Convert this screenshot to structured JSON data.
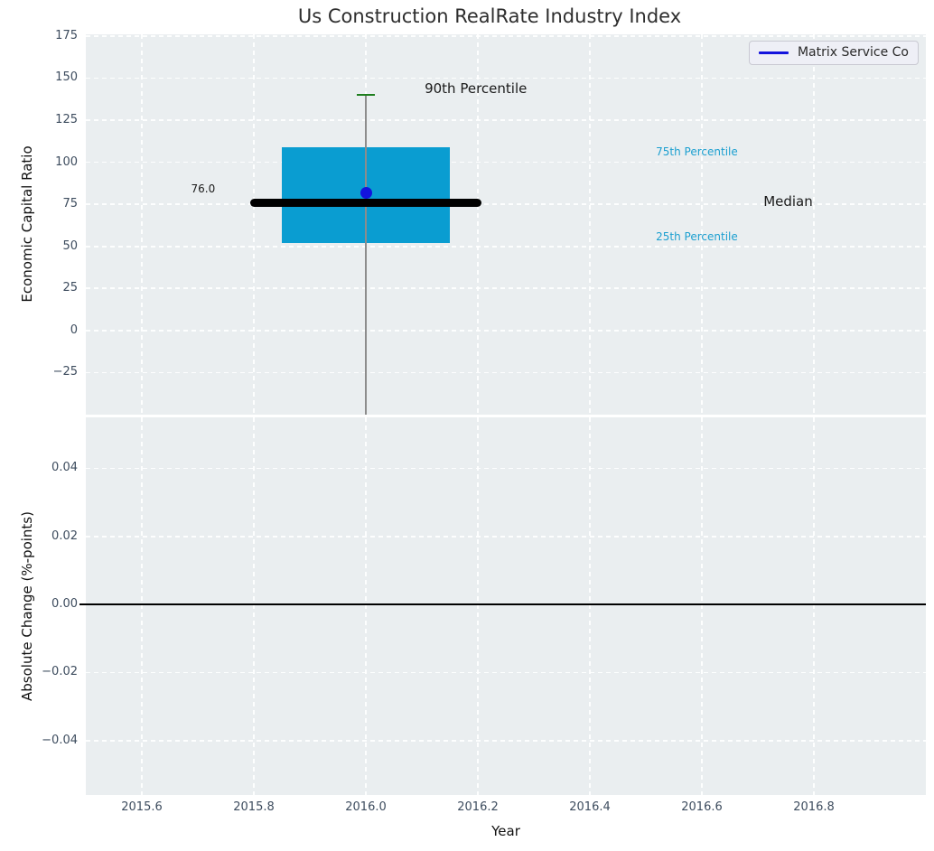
{
  "chart_data": {
    "type": "boxplot",
    "title": "Us Construction RealRate Industry Index",
    "xlabel": "Year",
    "legend": {
      "label": "Matrix Service Co",
      "line_color": "#1313dd",
      "position": "top-right"
    },
    "style": {
      "panel_bg": "#eaeef0",
      "grid_color": "#ffffff",
      "tick_color": "#3d4c5e",
      "title_color": "#2e2e2e",
      "box_fill": "#0a9dd1",
      "median_color": "#000000",
      "whisker_color": "#8c8c8c",
      "cap_color": "#1e7e1e",
      "point_color": "#1313dd",
      "zero_line_color": "#000000",
      "percentile_label_color": "#1b9fd0",
      "annotation_color": "#1a1a1a"
    },
    "x": {
      "lim": [
        2015.5,
        2017.0
      ],
      "ticks": [
        2015.6,
        2015.8,
        2016.0,
        2016.2,
        2016.4,
        2016.6,
        2016.8
      ],
      "tick_labels": [
        "2015.6",
        "2015.8",
        "2016.0",
        "2016.2",
        "2016.4",
        "2016.6",
        "2016.8"
      ]
    },
    "panels": [
      {
        "name": "economic-capital-ratio",
        "ylabel": "Economic Capital Ratio",
        "ylim": [
          -50,
          176
        ],
        "yticks": [
          175,
          150,
          125,
          100,
          75,
          50,
          25,
          0,
          -25
        ],
        "ytick_labels": [
          "175",
          "150",
          "125",
          "100",
          "75",
          "50",
          "25",
          "0",
          "−25"
        ],
        "boxplot": {
          "x": 2016.0,
          "p90": 140,
          "p75": 109,
          "median": 76.0,
          "p25": 52,
          "whisker_extends_below_axis": true,
          "box_half_width": 0.15,
          "median_half_width": 0.207,
          "cap_half_width": 0.016
        },
        "company_point": {
          "series": "Matrix Service Co",
          "x": 2016.0,
          "y": 82
        },
        "annotations": [
          {
            "text": "90th Percentile",
            "x": 2016.105,
            "y": 144,
            "size": 15,
            "color": "#1a1a1a",
            "align": "left"
          },
          {
            "text": "75th Percentile",
            "x": 2016.518,
            "y": 106,
            "size": 12,
            "color": "#1b9fd0",
            "align": "left"
          },
          {
            "text": "Median",
            "x": 2016.71,
            "y": 76.5,
            "size": 15,
            "color": "#1a1a1a",
            "align": "left"
          },
          {
            "text": "25th Percentile",
            "x": 2016.518,
            "y": 55.5,
            "size": 12,
            "color": "#1b9fd0",
            "align": "left"
          },
          {
            "text": "76.0",
            "x": 2015.731,
            "y": 84,
            "size": 12,
            "color": "#1a1a1a",
            "align": "right"
          }
        ]
      },
      {
        "name": "absolute-change",
        "ylabel": "Absolute Change (%-points)",
        "ylim": [
          -0.056,
          0.055
        ],
        "yticks": [
          0.04,
          0.02,
          0.0,
          -0.02,
          -0.04
        ],
        "ytick_labels": [
          "0.04",
          "0.02",
          "0.00",
          "−0.02",
          "−0.04"
        ],
        "zero_line": 0.0
      }
    ]
  }
}
